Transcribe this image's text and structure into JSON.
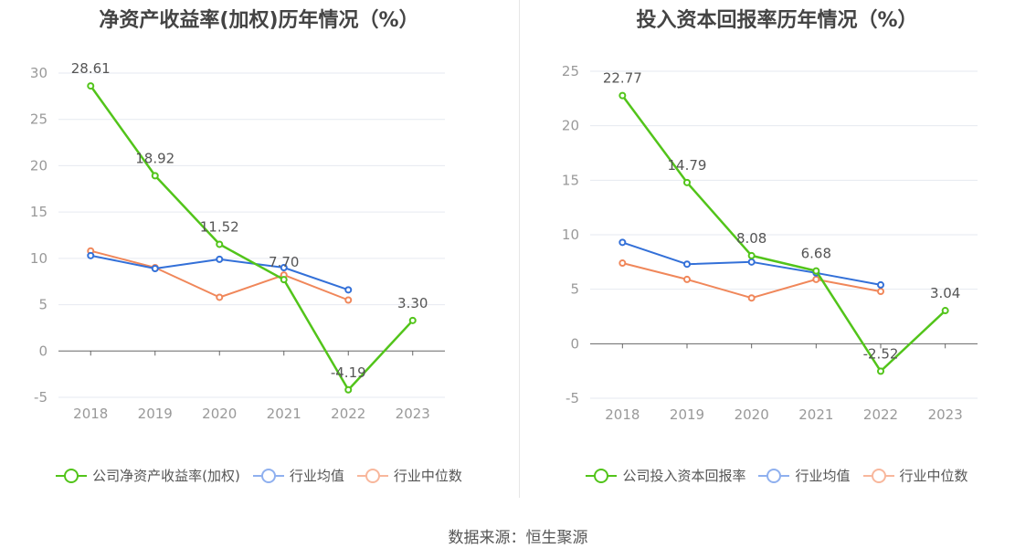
{
  "source": "数据来源：恒生聚源",
  "colors": {
    "company": "#52c41a",
    "avg": "#3370d8",
    "median": "#f0875a",
    "grid": "#e6e9f0",
    "axis": "#666666",
    "tick": "#999999",
    "label": "#555555"
  },
  "chart_data": [
    {
      "type": "line",
      "title": "净资产收益率(加权)历年情况（%）",
      "categories": [
        "2018",
        "2019",
        "2020",
        "2021",
        "2022",
        "2023"
      ],
      "ylim": [
        -5,
        30
      ],
      "yticks": [
        -5,
        0,
        5,
        10,
        15,
        20,
        25,
        30
      ],
      "legend_position": "bottom",
      "series": [
        {
          "name": "公司净资产收益率(加权)",
          "role": "company",
          "values": [
            28.61,
            18.92,
            11.52,
            7.7,
            -4.19,
            3.3
          ],
          "labels": [
            "28.61",
            "18.92",
            "11.52",
            "7.70",
            "-4.19",
            "3.30"
          ]
        },
        {
          "name": "行业均值",
          "role": "avg",
          "values": [
            10.3,
            8.9,
            9.9,
            9.0,
            6.6,
            null
          ]
        },
        {
          "name": "行业中位数",
          "role": "median",
          "values": [
            10.8,
            9.0,
            5.8,
            8.2,
            5.5,
            null
          ]
        }
      ]
    },
    {
      "type": "line",
      "title": "投入资本回报率历年情况（%）",
      "categories": [
        "2018",
        "2019",
        "2020",
        "2021",
        "2022",
        "2023"
      ],
      "ylim": [
        -5,
        25
      ],
      "yticks": [
        -5,
        0,
        5,
        10,
        15,
        20,
        25
      ],
      "legend_position": "bottom",
      "series": [
        {
          "name": "公司投入资本回报率",
          "role": "company",
          "values": [
            22.77,
            14.79,
            8.08,
            6.68,
            -2.52,
            3.04
          ],
          "labels": [
            "22.77",
            "14.79",
            "8.08",
            "6.68",
            "-2.52",
            "3.04"
          ]
        },
        {
          "name": "行业均值",
          "role": "avg",
          "values": [
            9.3,
            7.3,
            7.5,
            6.5,
            5.4,
            null
          ]
        },
        {
          "name": "行业中位数",
          "role": "median",
          "values": [
            7.4,
            5.9,
            4.2,
            5.9,
            4.8,
            null
          ]
        }
      ]
    }
  ]
}
